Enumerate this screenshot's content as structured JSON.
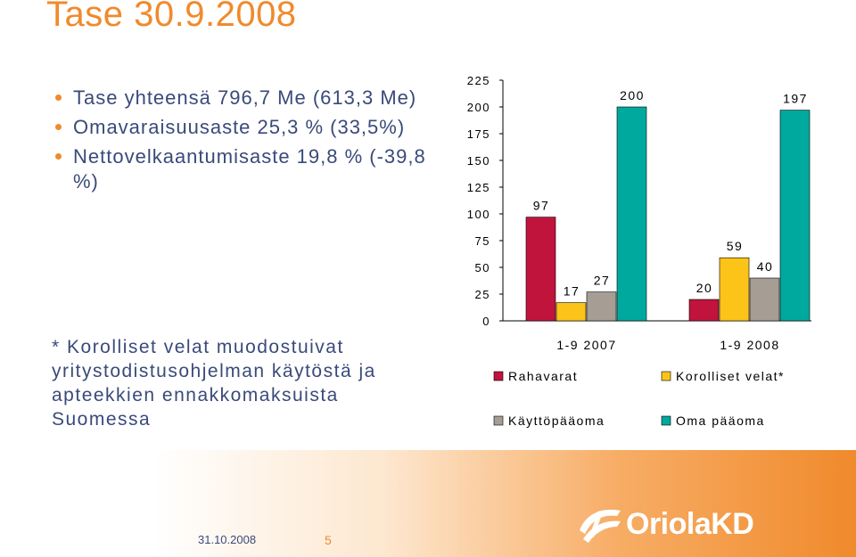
{
  "title": "Tase 30.9.2008",
  "bullets": [
    "Tase yhteensä 796,7 Me (613,3 Me)",
    "Omavaraisuusaste 25,3 % (33,5%)",
    "Nettovelkaantumisaste 19,8 % (-39,8 %)"
  ],
  "footnote": "* Korolliset velat muodostuivat yritystodistusohjelman käytöstä ja apteekkien ennakkomaksuista Suomessa",
  "footer": {
    "date": "31.10.2008",
    "page": "5",
    "logo_text": "OriolaKD"
  },
  "chart_data": {
    "type": "bar",
    "categories": [
      "1-9 2007",
      "1-9 2008"
    ],
    "series": [
      {
        "name": "Rahavarat",
        "color": "#c0143c",
        "values": [
          97,
          20
        ]
      },
      {
        "name": "Korolliset velat*",
        "color": "#fcc419",
        "values": [
          17,
          59
        ]
      },
      {
        "name": "Käyttöpääoma",
        "color": "#a69d94",
        "values": [
          27,
          40
        ]
      },
      {
        "name": "Oma pääoma",
        "color": "#00a99d",
        "values": [
          200,
          197
        ]
      }
    ],
    "ylim": [
      0,
      225
    ],
    "yticks": [
      0,
      25,
      50,
      75,
      100,
      125,
      150,
      175,
      200,
      225
    ],
    "legend_position": "bottom"
  }
}
